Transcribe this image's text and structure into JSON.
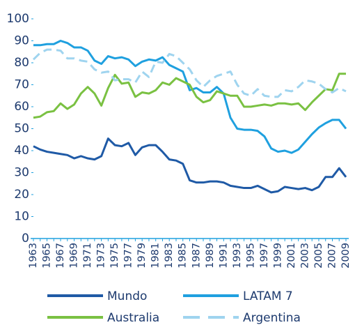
{
  "chart_data": {
    "type": "line",
    "categories": [
      "1963",
      null,
      "1965",
      null,
      "1967",
      null,
      "1969",
      null,
      "1971",
      null,
      "1973",
      null,
      "1975",
      null,
      "1977",
      null,
      "1979",
      null,
      "1981",
      null,
      "1983",
      null,
      "1985",
      null,
      "1987",
      null,
      "1989",
      null,
      "1991",
      null,
      "1993",
      null,
      "1995",
      null,
      "1997",
      null,
      "1999",
      null,
      "2001",
      null,
      "2003",
      null,
      "2005",
      null,
      "2007",
      null,
      "2009"
    ],
    "ylim": [
      0,
      100
    ],
    "yticks": [
      0,
      10,
      20,
      30,
      40,
      50,
      60,
      70,
      80,
      90,
      100
    ],
    "series": [
      {
        "name": "Mundo",
        "color": "#1f5aa6",
        "dashed": false,
        "values": [
          42,
          40.5,
          39.5,
          39,
          38.5,
          38,
          36.5,
          37.5,
          36.5,
          36,
          37.5,
          45.5,
          42.5,
          42,
          43.5,
          38,
          41.5,
          42.5,
          42.5,
          39.5,
          36,
          35.5,
          34,
          26.5,
          25.5,
          25.5,
          26,
          26,
          25.5,
          24,
          23.5,
          23,
          23,
          24,
          22.5,
          21,
          21.5,
          23.5,
          23,
          22.5,
          23,
          22,
          23.5,
          28,
          28,
          32,
          28
        ]
      },
      {
        "name": "LATAM 7",
        "color": "#1fa0df",
        "dashed": false,
        "values": [
          88,
          88,
          88.5,
          88.5,
          90,
          89,
          87,
          87,
          85.5,
          81,
          79.5,
          83,
          82,
          82.5,
          81.5,
          78.5,
          80.5,
          81.5,
          81,
          82.5,
          79,
          77.5,
          76,
          67.5,
          68.5,
          66.5,
          66.5,
          69,
          66,
          55,
          50,
          49.5,
          49.5,
          49,
          46.5,
          41,
          39.5,
          40,
          39,
          40.5,
          44,
          47.5,
          50.5,
          52.5,
          54,
          54,
          50
        ]
      },
      {
        "name": "Australia",
        "color": "#7ac142",
        "dashed": false,
        "values": [
          55,
          55.5,
          57.5,
          58,
          61.5,
          59,
          61,
          66,
          69,
          66,
          60.5,
          68.5,
          74.5,
          70.5,
          71,
          64.5,
          66.5,
          66,
          67.5,
          71,
          70,
          73,
          71.5,
          70,
          64.5,
          62,
          63,
          67,
          66,
          65,
          65,
          60,
          60,
          60.5,
          61,
          60.5,
          61.5,
          61.5,
          61,
          61.5,
          58.5,
          62,
          65,
          68,
          67.5,
          75,
          75
        ]
      },
      {
        "name": "Argentina",
        "color": "#9fd4ef",
        "dashed": true,
        "values": [
          81.5,
          84.5,
          86,
          86,
          85.5,
          82,
          82,
          81,
          80.5,
          77,
          75.5,
          76,
          72,
          72.5,
          72.5,
          71,
          76,
          73.5,
          80.5,
          80,
          84,
          83,
          80,
          77,
          72,
          69,
          72,
          74,
          75,
          76,
          70,
          66,
          65,
          68,
          65,
          64.5,
          64.5,
          67.5,
          67,
          69,
          72,
          71.5,
          70.5,
          68,
          66.5,
          68.5,
          67
        ]
      }
    ]
  }
}
